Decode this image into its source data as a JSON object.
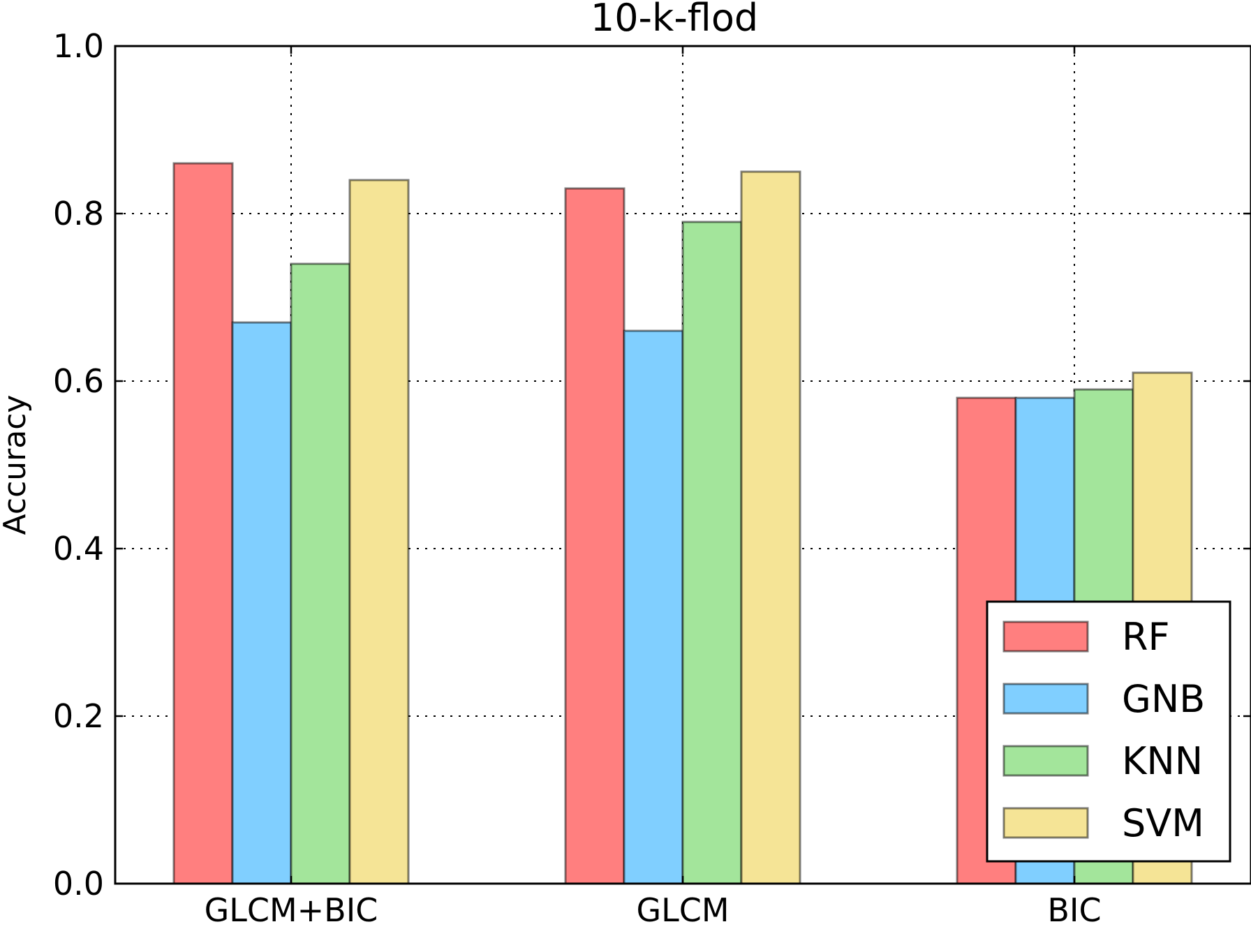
{
  "chart_data": {
    "type": "bar",
    "title": "10-k-flod",
    "xlabel": "",
    "ylabel": "Accuracy",
    "ylim": [
      0.0,
      1.0
    ],
    "yticks": [
      "0.0",
      "0.2",
      "0.4",
      "0.6",
      "0.8",
      "1.0"
    ],
    "grid": true,
    "legend_position": "lower-right",
    "categories": [
      "GLCM+BIC",
      "GLCM",
      "BIC"
    ],
    "series": [
      {
        "name": "RF",
        "color": "#ff7f7f",
        "values": [
          0.86,
          0.83,
          0.58
        ]
      },
      {
        "name": "GNB",
        "color": "#80cfff",
        "values": [
          0.67,
          0.66,
          0.58
        ]
      },
      {
        "name": "KNN",
        "color": "#a3e59b",
        "values": [
          0.74,
          0.79,
          0.59
        ]
      },
      {
        "name": "SVM",
        "color": "#f5e496",
        "values": [
          0.84,
          0.85,
          0.61
        ]
      }
    ]
  }
}
